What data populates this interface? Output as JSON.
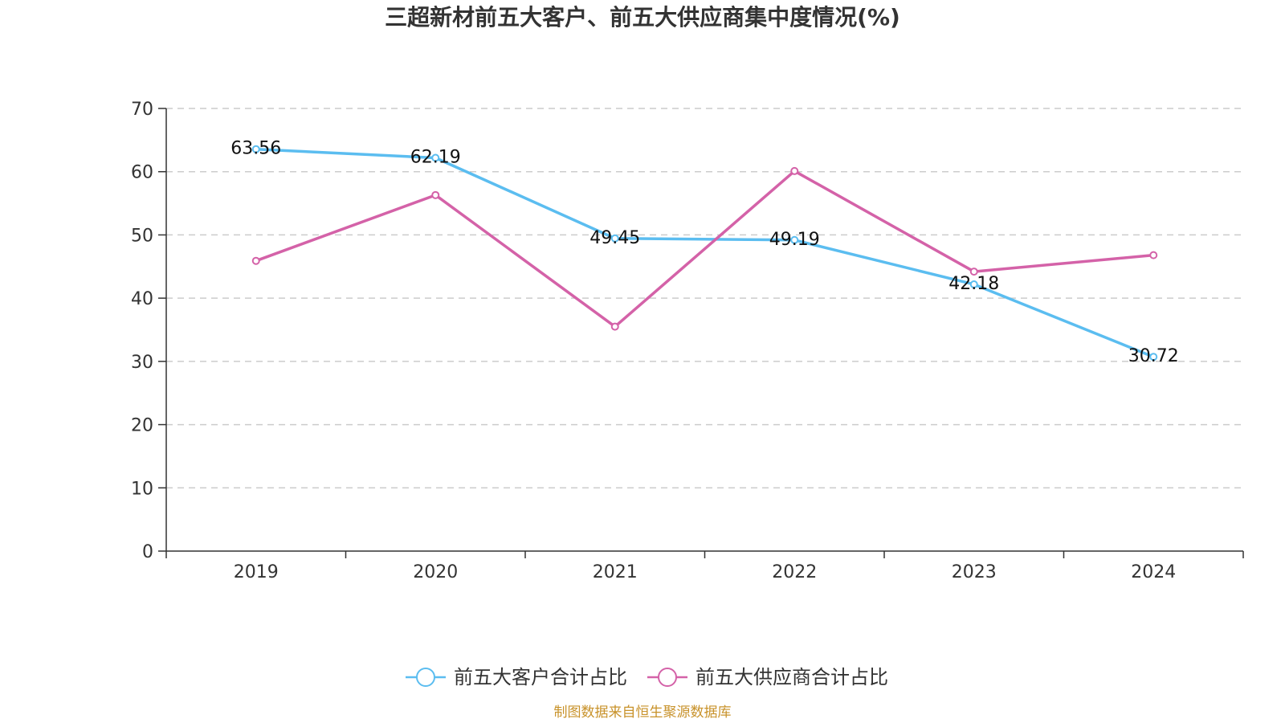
{
  "chart_data": {
    "type": "line",
    "title": "三超新材前五大客户、前五大供应商集中度情况(%)",
    "categories": [
      "2019",
      "2020",
      "2021",
      "2022",
      "2023",
      "2024"
    ],
    "ylim": [
      0,
      70
    ],
    "yticks": [
      0,
      10,
      20,
      30,
      40,
      50,
      60,
      70
    ],
    "grid": true,
    "legend_position": "bottom-center",
    "series": [
      {
        "name": "前五大客户合计占比",
        "color": "#5bbdf0",
        "values": [
          63.56,
          62.19,
          49.45,
          49.19,
          42.18,
          30.72
        ],
        "data_labels": [
          "63.56",
          "62.19",
          "49.45",
          "49.19",
          "42.18",
          "30.72"
        ]
      },
      {
        "name": "前五大供应商合计占比",
        "color": "#d462a8",
        "values": [
          45.9,
          56.3,
          35.5,
          60.1,
          44.2,
          46.8
        ],
        "data_labels": []
      }
    ],
    "source": "制图数据来自恒生聚源数据库"
  }
}
